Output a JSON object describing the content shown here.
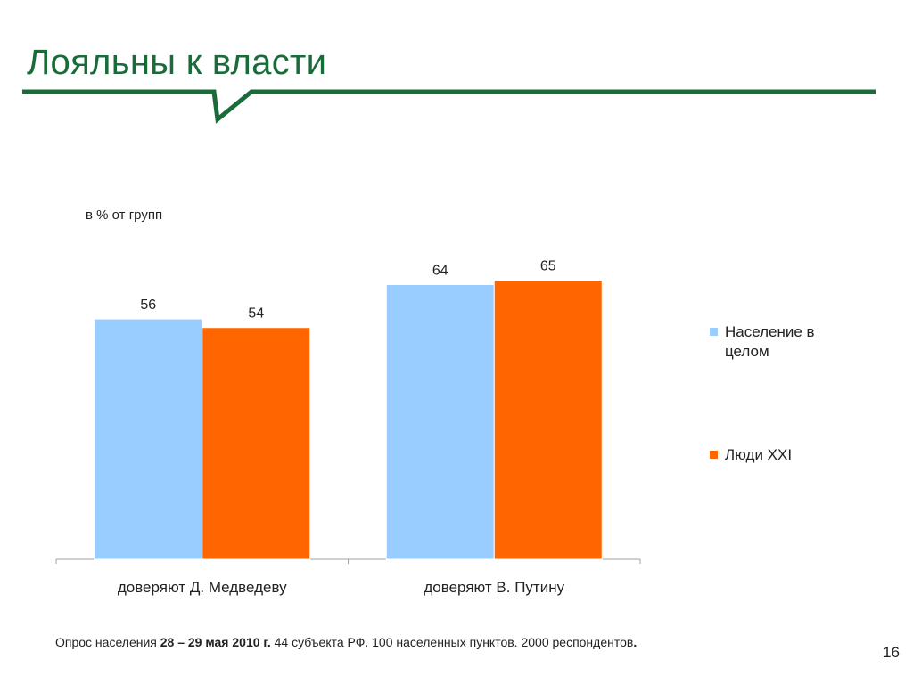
{
  "slide": {
    "title": "Лояльны к власти",
    "page_number": "16",
    "footer": {
      "prefix": "Опрос населения ",
      "dates": "28 – 29 мая 2010 г.",
      "suffix": " 44 субъекта РФ. 100 населенных пунктов. 2000 респондентов",
      "end": "."
    },
    "accent_color": "#1a6b3a"
  },
  "chart_data": {
    "type": "bar",
    "unit_label": "в % от групп",
    "categories": [
      "доверяют Д. Медведеву",
      "доверяют В. Путину"
    ],
    "series": [
      {
        "name": "Население в целом",
        "values": [
          56,
          64
        ],
        "color": "#99ccff"
      },
      {
        "name": "Люди XXI",
        "values": [
          54,
          65
        ],
        "color": "#ff6600"
      }
    ],
    "ylim": [
      0,
      100
    ],
    "grid": false,
    "legend_position": "right"
  }
}
